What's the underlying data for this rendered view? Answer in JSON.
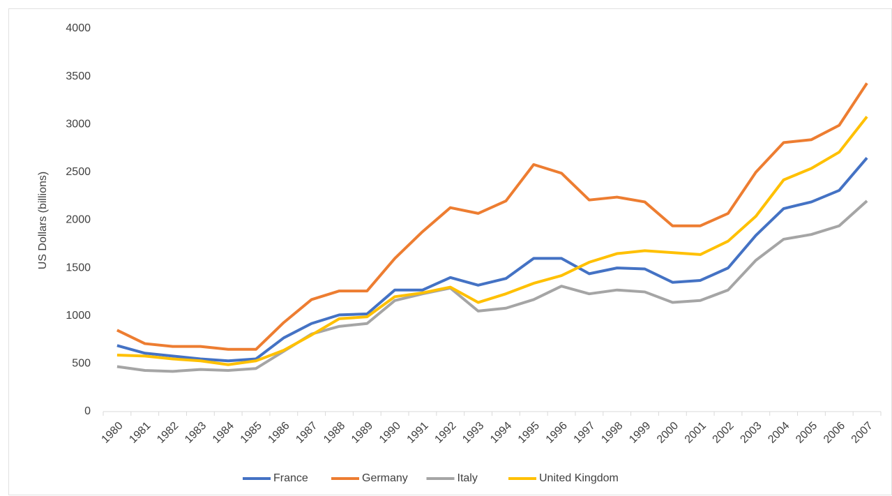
{
  "chart_data": {
    "type": "line",
    "y_label": "US Dollars (billions)",
    "categories": [
      "1980",
      "1981",
      "1982",
      "1983",
      "1984",
      "1985",
      "1986",
      "1987",
      "1988",
      "1989",
      "1990",
      "1991",
      "1992",
      "1993",
      "1994",
      "1995",
      "1996",
      "1997",
      "1998",
      "1999",
      "2000",
      "2001",
      "2002",
      "2003",
      "2004",
      "2005",
      "2006",
      "2007"
    ],
    "series": [
      {
        "name": "France",
        "color": "#4472c4",
        "values": [
          690,
          610,
          580,
          550,
          530,
          550,
          770,
          920,
          1010,
          1020,
          1270,
          1270,
          1400,
          1320,
          1390,
          1600,
          1600,
          1440,
          1500,
          1490,
          1350,
          1370,
          1500,
          1840,
          2120,
          2190,
          2310,
          2650
        ]
      },
      {
        "name": "Germany",
        "color": "#ed7d31",
        "values": [
          850,
          710,
          680,
          680,
          650,
          650,
          930,
          1170,
          1260,
          1260,
          1600,
          1880,
          2130,
          2070,
          2200,
          2580,
          2490,
          2210,
          2240,
          2190,
          1940,
          1940,
          2070,
          2500,
          2810,
          2840,
          2990,
          3430
        ]
      },
      {
        "name": "Italy",
        "color": "#a5a5a5",
        "values": [
          470,
          430,
          420,
          440,
          430,
          450,
          630,
          810,
          890,
          920,
          1160,
          1230,
          1290,
          1050,
          1080,
          1170,
          1310,
          1230,
          1270,
          1250,
          1140,
          1160,
          1270,
          1580,
          1800,
          1850,
          1940,
          2200
        ]
      },
      {
        "name": "United Kingdom",
        "color": "#ffc000",
        "values": [
          590,
          580,
          550,
          530,
          490,
          530,
          640,
          800,
          970,
          990,
          1200,
          1240,
          1300,
          1140,
          1230,
          1340,
          1420,
          1560,
          1650,
          1680,
          1660,
          1640,
          1780,
          2040,
          2420,
          2540,
          2710,
          3080
        ]
      }
    ],
    "ylim": [
      0,
      4000
    ],
    "yticks": [
      0,
      500,
      1000,
      1500,
      2000,
      2500,
      3000,
      3500,
      4000
    ],
    "grid": false,
    "legend": "bottom"
  }
}
